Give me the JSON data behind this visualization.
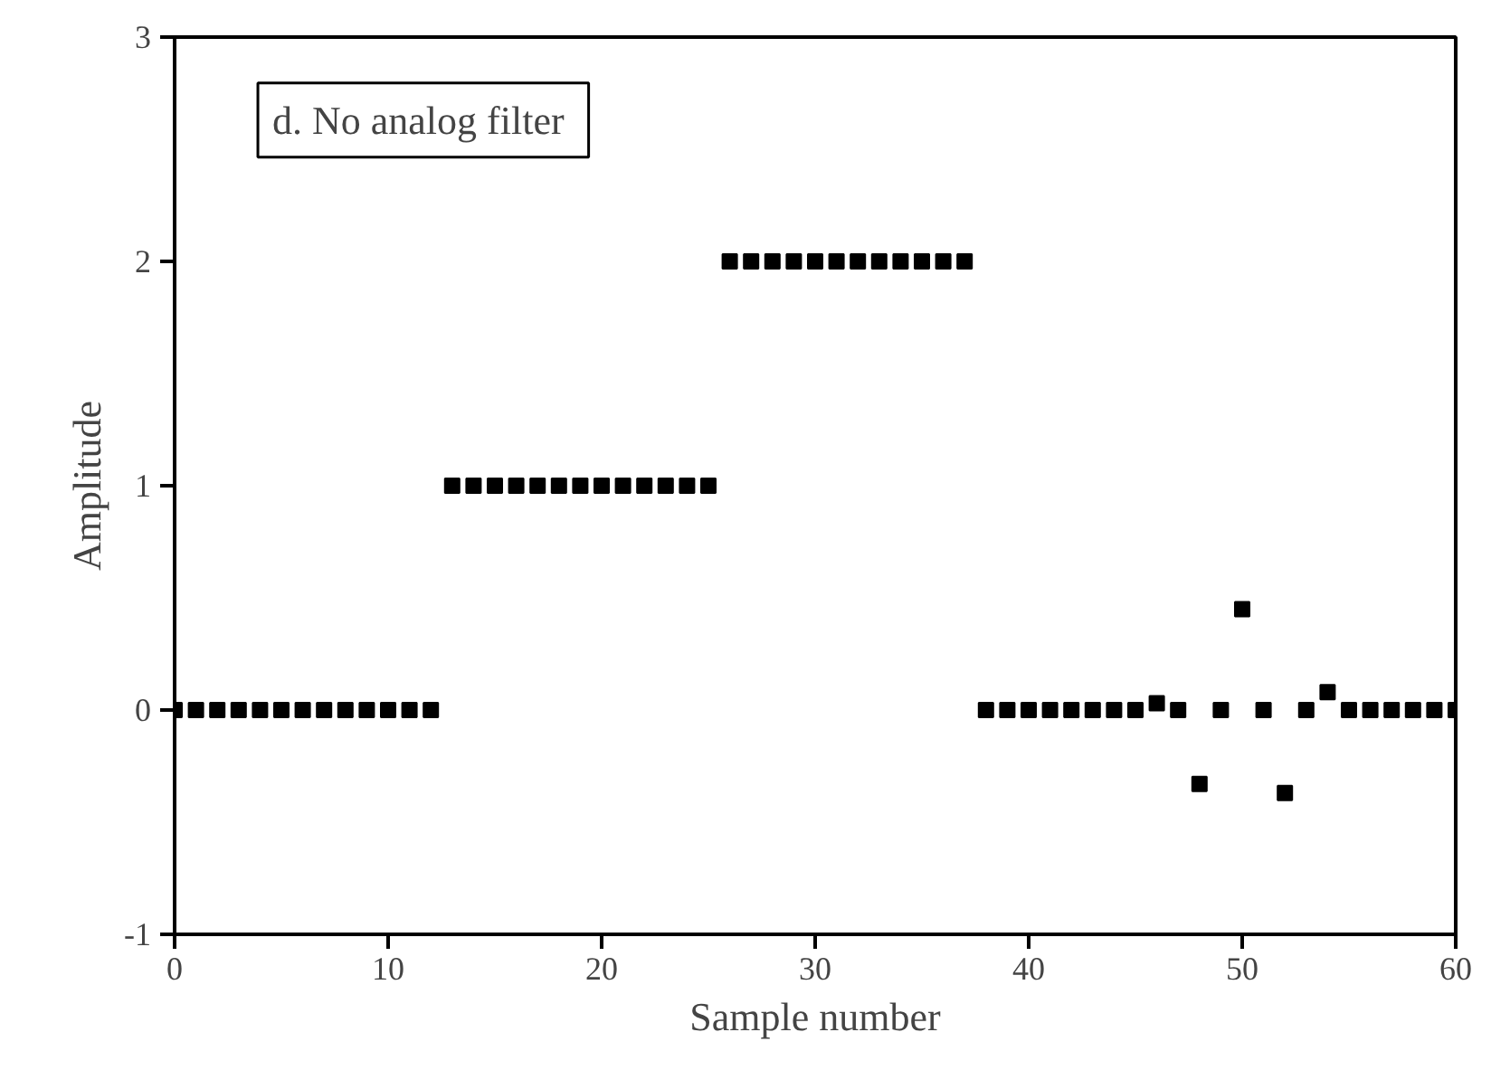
{
  "chart_data": {
    "type": "scatter",
    "title": "d.  No analog filter",
    "xlabel": "Sample number",
    "ylabel": "Amplitude",
    "x": [
      0,
      1,
      2,
      3,
      4,
      5,
      6,
      7,
      8,
      9,
      10,
      11,
      12,
      13,
      14,
      15,
      16,
      17,
      18,
      19,
      20,
      21,
      22,
      23,
      24,
      25,
      26,
      27,
      28,
      29,
      30,
      31,
      32,
      33,
      34,
      35,
      36,
      37,
      38,
      39,
      40,
      41,
      42,
      43,
      44,
      45,
      46,
      47,
      48,
      49,
      50,
      51,
      52,
      53,
      54,
      55,
      56,
      57,
      58,
      59,
      60
    ],
    "values": [
      0,
      0,
      0,
      0,
      0,
      0,
      0,
      0,
      0,
      0,
      0,
      0,
      0,
      1,
      1,
      1,
      1,
      1,
      1,
      1,
      1,
      1,
      1,
      1,
      1,
      1,
      2,
      2,
      2,
      2,
      2,
      2,
      2,
      2,
      2,
      2,
      2,
      2,
      0,
      0,
      0,
      0,
      0,
      0,
      0,
      0,
      0.03,
      0,
      -0.33,
      0,
      0.45,
      0,
      -0.37,
      0,
      0.08,
      0,
      0,
      0,
      0,
      0,
      0
    ],
    "color": "#000000",
    "marker": "square",
    "xlim": [
      0,
      60
    ],
    "ylim": [
      -1,
      3
    ],
    "xticks": [
      0,
      10,
      20,
      30,
      40,
      50,
      60
    ],
    "yticks": [
      -1,
      0,
      1,
      2,
      3
    ],
    "grid": false
  }
}
